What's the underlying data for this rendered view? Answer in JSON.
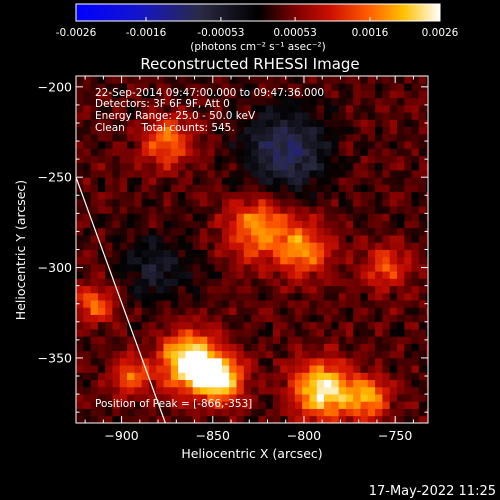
{
  "colorbar": {
    "tick_labels": [
      "-0.0026",
      "-0.0016",
      "-0.00053",
      "0.00053",
      "0.0016",
      "0.0026"
    ],
    "unit_label": "(photons cm⁻² s⁻¹ asec⁻²)"
  },
  "plot": {
    "title": "Reconstructed RHESSI Image",
    "info_lines": [
      "22-Sep-2014 09:47:00.000 to 09:47:36.000",
      "Detectors: 3F 6F 9F, Att 0",
      "Energy Range: 25.0 - 50.0 keV",
      "Clean     Total counts: 545."
    ],
    "peak_label": "Position of Peak = [-866,-353]",
    "timestamp": "17-May-2022 11:25"
  },
  "chart_data": {
    "type": "heatmap",
    "title": "Reconstructed RHESSI Image",
    "xlabel": "Heliocentric X (arcsec)",
    "ylabel": "Heliocentric Y (arcsec)",
    "xlim": [
      -925,
      -732
    ],
    "ylim": [
      -386,
      -194
    ],
    "x_ticks": [
      -900,
      -850,
      -800,
      -750
    ],
    "y_ticks": [
      -350,
      -300,
      -250,
      -200
    ],
    "x_tick_labels": [
      "−900",
      "−850",
      "−800",
      "−750"
    ],
    "y_tick_labels": [
      "−350",
      "−300",
      "−250",
      "−200"
    ],
    "colorbar_range": [
      -0.0026,
      0.0026
    ],
    "peak_position": [
      -866,
      -353
    ],
    "limb_line": [
      [
        -925,
        -250
      ],
      [
        -876,
        -386
      ]
    ],
    "bright_regions": [
      {
        "x": -862,
        "y": -352,
        "amplitude": 1.0,
        "radius": 16
      },
      {
        "x": -845,
        "y": -362,
        "amplitude": 0.8,
        "radius": 12
      },
      {
        "x": -790,
        "y": -368,
        "amplitude": 0.85,
        "radius": 16
      },
      {
        "x": -765,
        "y": -372,
        "amplitude": 0.6,
        "radius": 12
      },
      {
        "x": -825,
        "y": -278,
        "amplitude": 0.6,
        "radius": 17
      },
      {
        "x": -800,
        "y": -290,
        "amplitude": 0.55,
        "radius": 15
      },
      {
        "x": -875,
        "y": -230,
        "amplitude": 0.5,
        "radius": 14
      },
      {
        "x": -915,
        "y": -320,
        "amplitude": 0.55,
        "radius": 10
      },
      {
        "x": -895,
        "y": -360,
        "amplitude": 0.5,
        "radius": 10
      },
      {
        "x": -755,
        "y": -300,
        "amplitude": 0.45,
        "radius": 12
      }
    ],
    "dim_regions": [
      {
        "x": -810,
        "y": -235,
        "amplitude": -0.5,
        "radius": 22
      },
      {
        "x": -880,
        "y": -300,
        "amplitude": -0.3,
        "radius": 18
      }
    ]
  }
}
